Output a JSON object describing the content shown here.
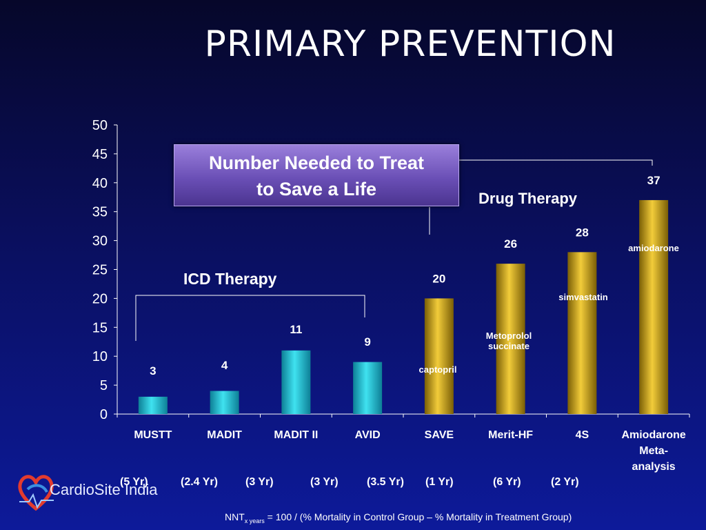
{
  "title": "PRIMARY PREVENTION",
  "callout": {
    "line1": "Number Needed to Treat",
    "line2": "to Save a Life"
  },
  "groups": {
    "icd": "ICD Therapy",
    "drug": "Drug Therapy"
  },
  "chart_data": {
    "type": "bar",
    "title": "PRIMARY PREVENTION",
    "categories": [
      "MUSTT",
      "MADIT",
      "MADIT II",
      "AVID",
      "SAVE",
      "Merit-HF",
      "4S",
      "Amiodarone Meta-analysis"
    ],
    "category_lines": [
      [
        "MUSTT"
      ],
      [
        "MADIT"
      ],
      [
        "MADIT II"
      ],
      [
        "AVID"
      ],
      [
        "SAVE"
      ],
      [
        "Merit-HF"
      ],
      [
        "4S"
      ],
      [
        "Amiodarone",
        "Meta-",
        "analysis"
      ]
    ],
    "values": [
      3,
      4,
      11,
      9,
      20,
      26,
      28,
      37
    ],
    "value_labels": [
      "3",
      "4",
      "11",
      "9",
      "20",
      "26",
      "28",
      "37"
    ],
    "ylim": [
      0,
      50
    ],
    "yticks": [
      "0",
      "5",
      "10",
      "15",
      "20",
      "25",
      "30",
      "35",
      "40",
      "45",
      "50"
    ],
    "series_colors": {
      "ICD Therapy": "#27c2d6",
      "Drug Therapy": "#c9a21b"
    },
    "grid": false,
    "legend": "none"
  },
  "annotations": {
    "captopril": "captopril",
    "metoprolol_1": "Metoprolol",
    "metoprolol_2": "succinate",
    "simvastatin": "simvastatin",
    "amiodarone": "amiodarone"
  },
  "periods": [
    "(5 Yr)",
    "(2.4 Yr)",
    "(3 Yr)",
    "(3 Yr)",
    "(3.5 Yr)",
    "(1 Yr)",
    "(6 Yr)",
    "(2 Yr)"
  ],
  "formula": {
    "prefix": "NNT",
    "subscript": "x years",
    "rest": " = 100 / (% Mortality in Control Group – % Mortality in Treatment Group)"
  },
  "logo": {
    "text": "CardioSite India"
  }
}
